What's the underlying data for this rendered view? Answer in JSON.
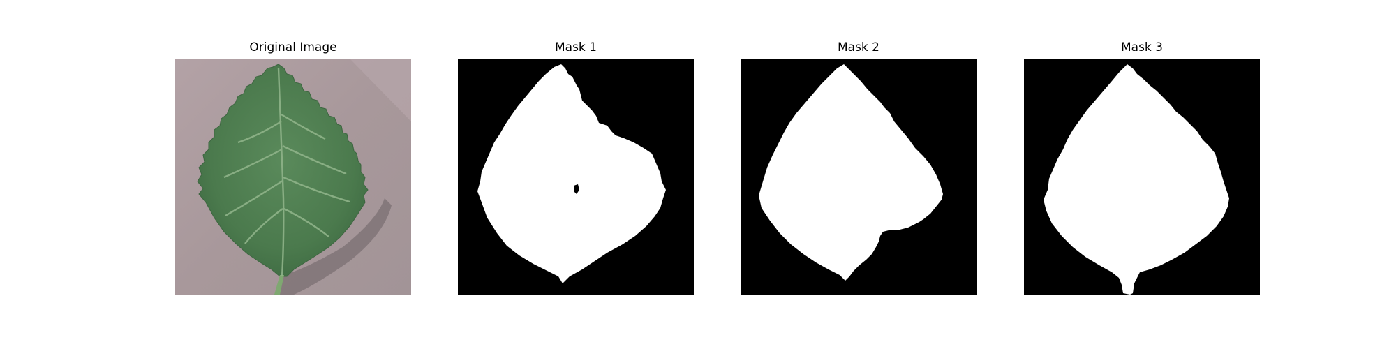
{
  "panels": [
    {
      "title": "Original Image",
      "kind": "photo",
      "subject": "leaf"
    },
    {
      "title": "Mask 1",
      "kind": "mask"
    },
    {
      "title": "Mask 2",
      "kind": "mask"
    },
    {
      "title": "Mask 3",
      "kind": "mask"
    }
  ],
  "colors": {
    "background": "#ffffff",
    "mask_background": "#000000",
    "mask_foreground": "#ffffff",
    "leaf_green": "#4a7a4c",
    "leaf_vein": "#8fb389",
    "surface": "#a7979a"
  }
}
